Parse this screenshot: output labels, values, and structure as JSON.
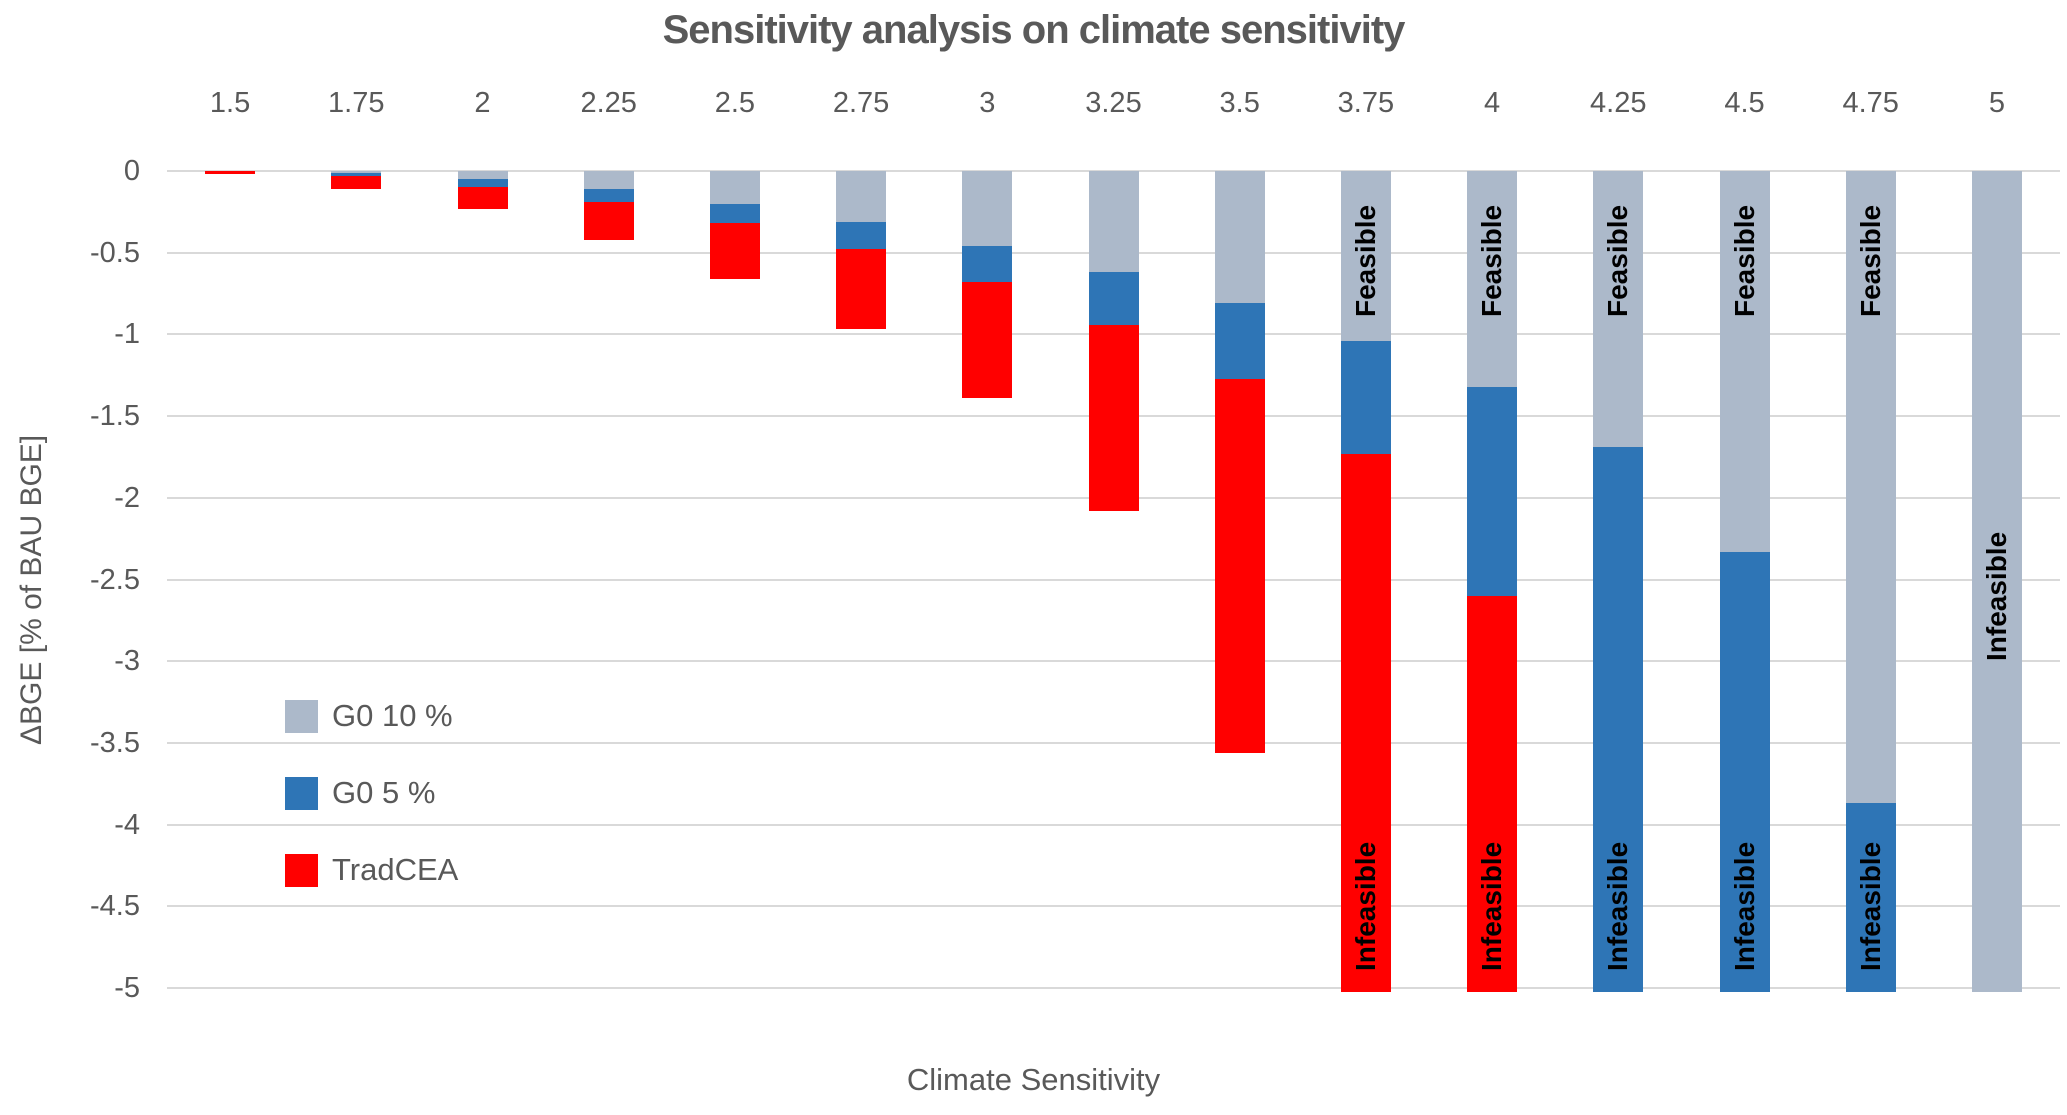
{
  "title": "Sensitivity analysis on climate sensitivity",
  "axes": {
    "x_title": "Climate Sensitivity",
    "y_title": "ΔBGE [% of BAU BGE]",
    "y_ticks": [
      "0",
      "-0.5",
      "-1",
      "-1.5",
      "-2",
      "-2.5",
      "-3",
      "-3.5",
      "-4",
      "-4.5",
      "-5"
    ]
  },
  "legend": {
    "items": [
      {
        "label": "G0 10 %",
        "color": "#ACB9CA"
      },
      {
        "label": "G0 5 %",
        "color": "#2E75B6"
      },
      {
        "label": "TradCEA",
        "color": "#FF0000"
      }
    ]
  },
  "colors": {
    "text": "#595959",
    "gridline": "#D9D9D9",
    "background": "#FFFFFF",
    "annotation_text": "#000000"
  },
  "chart_data": {
    "type": "bar",
    "subtype": "overlapped-negative-columns",
    "title": "Sensitivity analysis on climate sensitivity",
    "xlabel": "Climate Sensitivity",
    "ylabel": "ΔBGE [% of BAU BGE]",
    "ylim": [
      -5,
      0
    ],
    "grid": "horizontal, every 0.5",
    "legend_position": "inside-left",
    "categories": [
      "1.5",
      "1.75",
      "2",
      "2.25",
      "2.5",
      "2.75",
      "3",
      "3.25",
      "3.5",
      "3.75",
      "4",
      "4.25",
      "4.5",
      "4.75",
      "5"
    ],
    "series": [
      {
        "name": "G0 10 %",
        "color": "#ACB9CA",
        "draw_order": "top",
        "values": [
          0,
          -0.01,
          -0.05,
          -0.11,
          -0.2,
          -0.31,
          -0.46,
          -0.62,
          -0.81,
          -1.04,
          -1.32,
          -1.69,
          -2.33,
          -3.87,
          -5
        ],
        "infeasible_categories": [
          "5"
        ]
      },
      {
        "name": "G0 5 %",
        "color": "#2E75B6",
        "draw_order": "middle",
        "values": [
          0,
          -0.03,
          -0.1,
          -0.19,
          -0.32,
          -0.48,
          -0.68,
          -0.94,
          -1.27,
          -1.73,
          -2.6,
          -5,
          -5,
          -5,
          null
        ],
        "infeasible_categories": [
          "4.25",
          "4.5",
          "4.75"
        ]
      },
      {
        "name": "TradCEA",
        "color": "#FF0000",
        "draw_order": "bottom",
        "values": [
          -0.02,
          -0.11,
          -0.23,
          -0.42,
          -0.66,
          -0.97,
          -1.39,
          -2.08,
          -3.56,
          -5,
          -5,
          null,
          null,
          null,
          null
        ],
        "infeasible_categories": [
          "3.75",
          "4"
        ]
      }
    ],
    "annotations": [
      {
        "category": "3.75",
        "text": "Feasible",
        "region": "G0 10 %",
        "center_value": -0.55
      },
      {
        "category": "4",
        "text": "Feasible",
        "region": "G0 10 %",
        "center_value": -0.55
      },
      {
        "category": "4.25",
        "text": "Feasible",
        "region": "G0 10 %",
        "center_value": -0.55
      },
      {
        "category": "4.5",
        "text": "Feasible",
        "region": "G0 10 %",
        "center_value": -0.55
      },
      {
        "category": "4.75",
        "text": "Feasible",
        "region": "G0 10 %",
        "center_value": -0.55
      },
      {
        "category": "3.75",
        "text": "Infeasible",
        "region": "TradCEA",
        "center_value": -4.5
      },
      {
        "category": "4",
        "text": "Infeasible",
        "region": "TradCEA",
        "center_value": -4.5
      },
      {
        "category": "4.25",
        "text": "Infeasible",
        "region": "G0 5 %",
        "center_value": -4.5
      },
      {
        "category": "4.5",
        "text": "Infeasible",
        "region": "G0 5 %",
        "center_value": -4.5
      },
      {
        "category": "4.75",
        "text": "Infeasible",
        "region": "G0 5 %",
        "center_value": -4.5
      },
      {
        "category": "5",
        "text": "Infeasible",
        "region": "G0 10 %",
        "center_value": -2.6
      }
    ]
  }
}
